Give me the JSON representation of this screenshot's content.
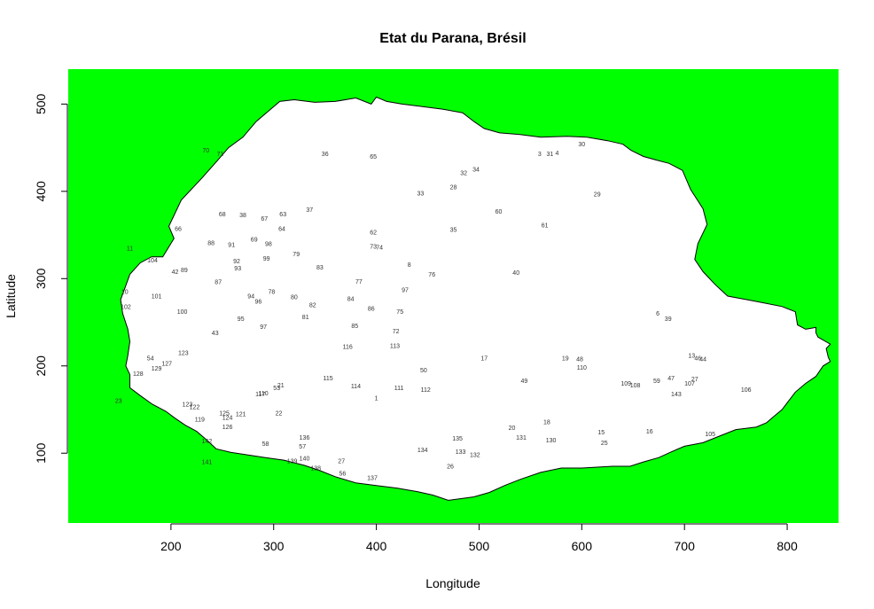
{
  "chart_data": {
    "type": "scatter",
    "title": "Etat du Parana, Brésil",
    "xlabel": "Longitude",
    "ylabel": "Latitude",
    "xlim": [
      100,
      850
    ],
    "ylim": [
      20,
      540
    ],
    "x_ticks": [
      200,
      300,
      400,
      500,
      600,
      700,
      800
    ],
    "y_ticks": [
      100,
      200,
      300,
      400,
      500
    ],
    "background_color": "#00ff00",
    "region_fill": "#ffffff",
    "region_border": [
      [
        192,
        325
      ],
      [
        203,
        346
      ],
      [
        198,
        360
      ],
      [
        210,
        390
      ],
      [
        230,
        415
      ],
      [
        245,
        435
      ],
      [
        256,
        450
      ],
      [
        270,
        462
      ],
      [
        283,
        480
      ],
      [
        293,
        490
      ],
      [
        306,
        503
      ],
      [
        320,
        505
      ],
      [
        340,
        502
      ],
      [
        360,
        503
      ],
      [
        380,
        507
      ],
      [
        395,
        500
      ],
      [
        400,
        508
      ],
      [
        410,
        503
      ],
      [
        425,
        500
      ],
      [
        445,
        497
      ],
      [
        465,
        494
      ],
      [
        484,
        490
      ],
      [
        495,
        480
      ],
      [
        505,
        472
      ],
      [
        520,
        467
      ],
      [
        540,
        465
      ],
      [
        560,
        462
      ],
      [
        585,
        463
      ],
      [
        605,
        462
      ],
      [
        625,
        458
      ],
      [
        640,
        454
      ],
      [
        648,
        447
      ],
      [
        660,
        440
      ],
      [
        672,
        436
      ],
      [
        685,
        432
      ],
      [
        698,
        424
      ],
      [
        706,
        402
      ],
      [
        718,
        380
      ],
      [
        722,
        362
      ],
      [
        713,
        340
      ],
      [
        710,
        322
      ],
      [
        718,
        308
      ],
      [
        730,
        293
      ],
      [
        742,
        280
      ],
      [
        760,
        276
      ],
      [
        778,
        272
      ],
      [
        795,
        268
      ],
      [
        808,
        262
      ],
      [
        810,
        247
      ],
      [
        818,
        242
      ],
      [
        828,
        244
      ],
      [
        828,
        238
      ],
      [
        830,
        233
      ],
      [
        842,
        225
      ],
      [
        838,
        220
      ],
      [
        840,
        210
      ],
      [
        842,
        205
      ],
      [
        835,
        200
      ],
      [
        828,
        188
      ],
      [
        818,
        180
      ],
      [
        808,
        170
      ],
      [
        795,
        150
      ],
      [
        785,
        140
      ],
      [
        780,
        135
      ],
      [
        770,
        130
      ],
      [
        750,
        127
      ],
      [
        735,
        120
      ],
      [
        718,
        112
      ],
      [
        700,
        108
      ],
      [
        688,
        102
      ],
      [
        675,
        95
      ],
      [
        660,
        90
      ],
      [
        647,
        85
      ],
      [
        630,
        85
      ],
      [
        615,
        84
      ],
      [
        600,
        83
      ],
      [
        580,
        83
      ],
      [
        560,
        78
      ],
      [
        540,
        70
      ],
      [
        525,
        63
      ],
      [
        510,
        55
      ],
      [
        495,
        50
      ],
      [
        470,
        46
      ],
      [
        455,
        52
      ],
      [
        440,
        56
      ],
      [
        420,
        60
      ],
      [
        400,
        63
      ],
      [
        380,
        66
      ],
      [
        360,
        73
      ],
      [
        345,
        80
      ],
      [
        330,
        86
      ],
      [
        310,
        92
      ],
      [
        292,
        95
      ],
      [
        275,
        98
      ],
      [
        258,
        101
      ],
      [
        244,
        105
      ],
      [
        235,
        115
      ],
      [
        225,
        125
      ],
      [
        214,
        132
      ],
      [
        204,
        140
      ],
      [
        195,
        148
      ],
      [
        182,
        156
      ],
      [
        170,
        166
      ],
      [
        160,
        175
      ],
      [
        160,
        180
      ],
      [
        160,
        190
      ],
      [
        156,
        200
      ],
      [
        158,
        212
      ],
      [
        160,
        228
      ],
      [
        158,
        242
      ],
      [
        153,
        260
      ],
      [
        151,
        276
      ],
      [
        156,
        292
      ],
      [
        160,
        305
      ],
      [
        170,
        318
      ],
      [
        181,
        325
      ],
      [
        192,
        325
      ]
    ],
    "points": [
      {
        "x": 400,
        "y": 163,
        "label": "1"
      },
      {
        "x": 559,
        "y": 443,
        "label": "3"
      },
      {
        "x": 576,
        "y": 444,
        "label": "4"
      },
      {
        "x": 674,
        "y": 260,
        "label": "6"
      },
      {
        "x": 432,
        "y": 316,
        "label": "8"
      },
      {
        "x": 707,
        "y": 212,
        "label": "13"
      },
      {
        "x": 619,
        "y": 124,
        "label": "15"
      },
      {
        "x": 666,
        "y": 125,
        "label": "16"
      },
      {
        "x": 505,
        "y": 209,
        "label": "17"
      },
      {
        "x": 566,
        "y": 136,
        "label": "18"
      },
      {
        "x": 584,
        "y": 209,
        "label": "19"
      },
      {
        "x": 532,
        "y": 129,
        "label": "20"
      },
      {
        "x": 307,
        "y": 178,
        "label": "21"
      },
      {
        "x": 305,
        "y": 146,
        "label": "22"
      },
      {
        "x": 710,
        "y": 185,
        "label": "27"
      },
      {
        "x": 475,
        "y": 405,
        "label": "28"
      },
      {
        "x": 615,
        "y": 397,
        "label": "29"
      },
      {
        "x": 600,
        "y": 454,
        "label": "30"
      },
      {
        "x": 569,
        "y": 443,
        "label": "31"
      },
      {
        "x": 485,
        "y": 421,
        "label": "32"
      },
      {
        "x": 443,
        "y": 398,
        "label": "33"
      },
      {
        "x": 497,
        "y": 425,
        "label": "34"
      },
      {
        "x": 475,
        "y": 356,
        "label": "35"
      },
      {
        "x": 350,
        "y": 443,
        "label": "36"
      },
      {
        "x": 335,
        "y": 379,
        "label": "37"
      },
      {
        "x": 270,
        "y": 373,
        "label": "38"
      },
      {
        "x": 684,
        "y": 254,
        "label": "39"
      },
      {
        "x": 536,
        "y": 307,
        "label": "40"
      },
      {
        "x": 204,
        "y": 308,
        "label": "42"
      },
      {
        "x": 243,
        "y": 238,
        "label": "43"
      },
      {
        "x": 718,
        "y": 208,
        "label": "44"
      },
      {
        "x": 713,
        "y": 209,
        "label": "46"
      },
      {
        "x": 687,
        "y": 186,
        "label": "47"
      },
      {
        "x": 598,
        "y": 208,
        "label": "48"
      },
      {
        "x": 544,
        "y": 183,
        "label": "49"
      },
      {
        "x": 446,
        "y": 195,
        "label": "50"
      },
      {
        "x": 303,
        "y": 175,
        "label": "53"
      },
      {
        "x": 180,
        "y": 209,
        "label": "54"
      },
      {
        "x": 367,
        "y": 77,
        "label": "56"
      },
      {
        "x": 328,
        "y": 108,
        "label": "57"
      },
      {
        "x": 292,
        "y": 111,
        "label": "58"
      },
      {
        "x": 673,
        "y": 183,
        "label": "59"
      },
      {
        "x": 519,
        "y": 377,
        "label": "60"
      },
      {
        "x": 564,
        "y": 361,
        "label": "61"
      },
      {
        "x": 397,
        "y": 353,
        "label": "62"
      },
      {
        "x": 309,
        "y": 374,
        "label": "63"
      },
      {
        "x": 308,
        "y": 357,
        "label": "64"
      },
      {
        "x": 397,
        "y": 440,
        "label": "65"
      },
      {
        "x": 207,
        "y": 357,
        "label": "66"
      },
      {
        "x": 291,
        "y": 369,
        "label": "67"
      },
      {
        "x": 250,
        "y": 374,
        "label": "68"
      },
      {
        "x": 281,
        "y": 345,
        "label": "69"
      },
      {
        "x": 234,
        "y": 447,
        "label": "70"
      },
      {
        "x": 248,
        "y": 443,
        "label": "71"
      },
      {
        "x": 419,
        "y": 240,
        "label": "72"
      },
      {
        "x": 397,
        "y": 337,
        "label": "73"
      },
      {
        "x": 403,
        "y": 336,
        "label": "74"
      },
      {
        "x": 423,
        "y": 262,
        "label": "75"
      },
      {
        "x": 454,
        "y": 305,
        "label": "76"
      },
      {
        "x": 383,
        "y": 297,
        "label": "77"
      },
      {
        "x": 298,
        "y": 285,
        "label": "78"
      },
      {
        "x": 322,
        "y": 328,
        "label": "79"
      },
      {
        "x": 320,
        "y": 279,
        "label": "80"
      },
      {
        "x": 331,
        "y": 256,
        "label": "81"
      },
      {
        "x": 338,
        "y": 270,
        "label": "82"
      },
      {
        "x": 345,
        "y": 313,
        "label": "83"
      },
      {
        "x": 375,
        "y": 277,
        "label": "84"
      },
      {
        "x": 379,
        "y": 246,
        "label": "85"
      },
      {
        "x": 395,
        "y": 266,
        "label": "86"
      },
      {
        "x": 246,
        "y": 296,
        "label": "87"
      },
      {
        "x": 239,
        "y": 341,
        "label": "88"
      },
      {
        "x": 213,
        "y": 310,
        "label": "89"
      },
      {
        "x": 259,
        "y": 339,
        "label": "91"
      },
      {
        "x": 264,
        "y": 320,
        "label": "92"
      },
      {
        "x": 265,
        "y": 312,
        "label": "93"
      },
      {
        "x": 278,
        "y": 280,
        "label": "94"
      },
      {
        "x": 268,
        "y": 254,
        "label": "95"
      },
      {
        "x": 285,
        "y": 274,
        "label": "96"
      },
      {
        "x": 290,
        "y": 245,
        "label": "97"
      },
      {
        "x": 428,
        "y": 287,
        "label": "97"
      },
      {
        "x": 295,
        "y": 340,
        "label": "98"
      },
      {
        "x": 293,
        "y": 323,
        "label": "99"
      },
      {
        "x": 211,
        "y": 262,
        "label": "100"
      },
      {
        "x": 186,
        "y": 280,
        "label": "101"
      },
      {
        "x": 182,
        "y": 321,
        "label": "104"
      },
      {
        "x": 705,
        "y": 180,
        "label": "107"
      },
      {
        "x": 652,
        "y": 178,
        "label": "108"
      },
      {
        "x": 643,
        "y": 180,
        "label": "109"
      },
      {
        "x": 600,
        "y": 198,
        "label": "110"
      },
      {
        "x": 422,
        "y": 175,
        "label": "111"
      },
      {
        "x": 448,
        "y": 173,
        "label": "112"
      },
      {
        "x": 418,
        "y": 223,
        "label": "113"
      },
      {
        "x": 380,
        "y": 177,
        "label": "114"
      },
      {
        "x": 372,
        "y": 222,
        "label": "116"
      },
      {
        "x": 228,
        "y": 139,
        "label": "119"
      },
      {
        "x": 268,
        "y": 145,
        "label": "121"
      },
      {
        "x": 223,
        "y": 153,
        "label": "122"
      },
      {
        "x": 216,
        "y": 156,
        "label": "123"
      },
      {
        "x": 212,
        "y": 215,
        "label": "123"
      },
      {
        "x": 255,
        "y": 141,
        "label": "124"
      },
      {
        "x": 252,
        "y": 146,
        "label": "125"
      },
      {
        "x": 255,
        "y": 130,
        "label": "126"
      },
      {
        "x": 196,
        "y": 203,
        "label": "127"
      },
      {
        "x": 168,
        "y": 191,
        "label": "128"
      },
      {
        "x": 186,
        "y": 197,
        "label": "129"
      },
      {
        "x": 482,
        "y": 102,
        "label": "133"
      },
      {
        "x": 445,
        "y": 104,
        "label": "134"
      },
      {
        "x": 479,
        "y": 117,
        "label": "135"
      },
      {
        "x": 330,
        "y": 118,
        "label": "136"
      },
      {
        "x": 341,
        "y": 83,
        "label": "138"
      },
      {
        "x": 318,
        "y": 91,
        "label": "139"
      },
      {
        "x": 330,
        "y": 94,
        "label": "140"
      },
      {
        "x": 235,
        "y": 90,
        "label": "141"
      },
      {
        "x": 235,
        "y": 114,
        "label": "142"
      },
      {
        "x": 692,
        "y": 168,
        "label": "143"
      },
      {
        "x": 287,
        "y": 168,
        "label": "117"
      },
      {
        "x": 290,
        "y": 169,
        "label": "110"
      },
      {
        "x": 353,
        "y": 186,
        "label": "115"
      },
      {
        "x": 396,
        "y": 72,
        "label": "137"
      },
      {
        "x": 496,
        "y": 98,
        "label": "132"
      },
      {
        "x": 366,
        "y": 91,
        "label": "27"
      },
      {
        "x": 541,
        "y": 118,
        "label": "131"
      },
      {
        "x": 570,
        "y": 115,
        "label": "130"
      },
      {
        "x": 622,
        "y": 112,
        "label": "25"
      },
      {
        "x": 725,
        "y": 122,
        "label": "105"
      },
      {
        "x": 760,
        "y": 173,
        "label": "106"
      },
      {
        "x": 149,
        "y": 160,
        "label": "23"
      },
      {
        "x": 160,
        "y": 335,
        "label": "11"
      },
      {
        "x": 155,
        "y": 285,
        "label": "10"
      },
      {
        "x": 156,
        "y": 268,
        "label": "102"
      },
      {
        "x": 472,
        "y": 85,
        "label": "26"
      }
    ]
  }
}
